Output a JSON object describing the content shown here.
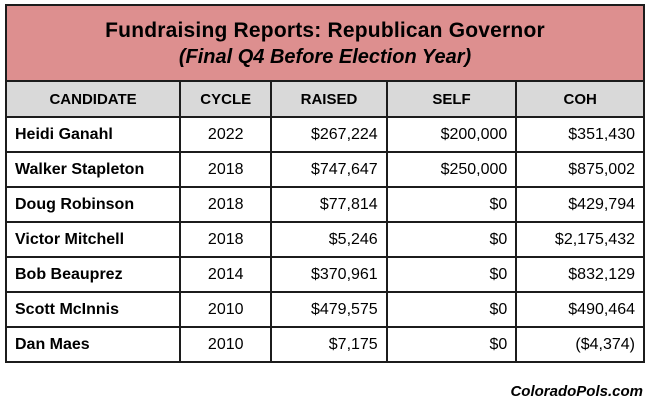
{
  "header": {
    "title": "Fundraising Reports: Republican Governor",
    "subtitle": "(Final Q4 Before Election Year)"
  },
  "footer": {
    "text": "ColoradoPols.com"
  },
  "colors": {
    "title_banner_bg": "#dd8f8f",
    "column_header_bg": "#d9d9d9",
    "border": "#1c1c1c",
    "row_bg": "#ffffff",
    "text": "#000000"
  },
  "chart_data": {
    "type": "table",
    "title": "Fundraising Reports: Republican Governor (Final Q4 Before Election Year)",
    "columns": [
      "CANDIDATE",
      "CYCLE",
      "RAISED",
      "SELF",
      "COH"
    ],
    "rows": [
      [
        "Heidi Ganahl",
        "2022",
        "$267,224",
        "$200,000",
        "$351,430"
      ],
      [
        "Walker Stapleton",
        "2018",
        "$747,647",
        "$250,000",
        "$875,002"
      ],
      [
        "Doug Robinson",
        "2018",
        "$77,814",
        "$0",
        "$429,794"
      ],
      [
        "Victor Mitchell",
        "2018",
        "$5,246",
        "$0",
        "$2,175,432"
      ],
      [
        "Bob Beauprez",
        "2014",
        "$370,961",
        "$0",
        "$832,129"
      ],
      [
        "Scott McInnis",
        "2010",
        "$479,575",
        "$0",
        "$490,464"
      ],
      [
        "Dan Maes",
        "2010",
        "$7,175",
        "$0",
        "($4,374)"
      ]
    ]
  }
}
